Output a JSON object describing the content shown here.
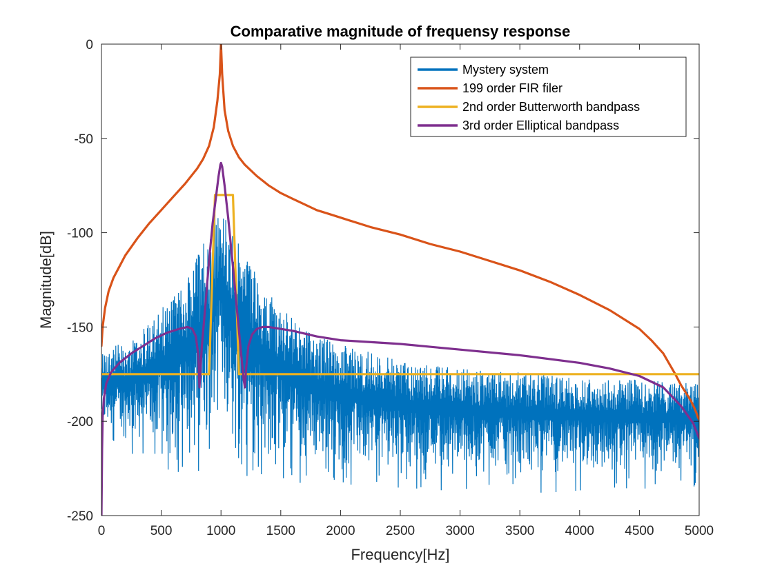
{
  "chart_data": {
    "type": "line",
    "title": "Comparative magnitude of frequensy response",
    "xlabel": "Frequency[Hz]",
    "ylabel": "Magnitude[dB]",
    "xlim": [
      0,
      5000
    ],
    "ylim": [
      -250,
      0
    ],
    "xticks": [
      0,
      500,
      1000,
      1500,
      2000,
      2500,
      3000,
      3500,
      4000,
      4500,
      5000
    ],
    "yticks": [
      -250,
      -200,
      -150,
      -100,
      -50,
      0
    ],
    "xtick_labels": [
      "0",
      "500",
      "1000",
      "1500",
      "2000",
      "2500",
      "3000",
      "3500",
      "4000",
      "4500",
      "5000"
    ],
    "ytick_labels": [
      "-250",
      "-200",
      "-150",
      "-100",
      "-50",
      "0"
    ],
    "grid": false,
    "legend_position": "top-right",
    "series": [
      {
        "name": "Mystery system",
        "color": "#0072BD",
        "style": "noise-envelope",
        "x": [
          0,
          200,
          400,
          600,
          700,
          800,
          900,
          950,
          1000,
          1050,
          1100,
          1200,
          1400,
          1600,
          1800,
          2000,
          2500,
          3000,
          3500,
          4000,
          4500,
          5000
        ],
        "upper": [
          -162,
          -158,
          -148,
          -133,
          -125,
          -113,
          -98,
          -90,
          -85,
          -91,
          -99,
          -113,
          -132,
          -145,
          -154,
          -159,
          -168,
          -172,
          -174,
          -176,
          -178,
          -180
        ],
        "lower": [
          -205,
          -210,
          -214,
          -217,
          -219,
          -220,
          -222,
          -205,
          -190,
          -205,
          -222,
          -220,
          -222,
          -223,
          -224,
          -225,
          -226,
          -227,
          -228,
          -228,
          -228,
          -226
        ]
      },
      {
        "name": "199 order FIR filer",
        "color": "#D95319",
        "x": [
          0,
          10,
          30,
          60,
          100,
          200,
          300,
          400,
          500,
          600,
          700,
          800,
          850,
          900,
          940,
          970,
          990,
          1000,
          1010,
          1030,
          1060,
          1100,
          1150,
          1200,
          1300,
          1400,
          1500,
          1600,
          1700,
          1800,
          1900,
          2000,
          2250,
          2500,
          2750,
          3000,
          3250,
          3500,
          3750,
          4000,
          4250,
          4500,
          4600,
          4700,
          4800,
          4850,
          4900,
          4930,
          4960,
          4980,
          4990,
          5000
        ],
        "y": [
          -160,
          -150,
          -140,
          -131,
          -124,
          -112,
          -103,
          -95,
          -88,
          -81,
          -74,
          -66,
          -61,
          -54,
          -44,
          -30,
          -16,
          0,
          -16,
          -35,
          -46,
          -54,
          -60,
          -64,
          -70,
          -75,
          -79,
          -82,
          -85,
          -88,
          -90,
          -92,
          -97,
          -101,
          -106,
          -110,
          -115,
          -120,
          -126,
          -133,
          -141,
          -151,
          -157,
          -164,
          -175,
          -181,
          -186,
          -189,
          -193,
          -196,
          -198,
          -199
        ]
      },
      {
        "name": "2nd order Butterworth bandpass",
        "color": "#EDB120",
        "x": [
          0,
          900,
          950,
          1000,
          1050,
          1100,
          1150,
          5000
        ],
        "y": [
          -175,
          -175,
          -80,
          -80,
          -80,
          -80,
          -175,
          -175
        ]
      },
      {
        "name": "3rd order Elliptical bandpass",
        "color": "#7E2F8E",
        "x": [
          0,
          5,
          10,
          20,
          40,
          80,
          150,
          250,
          350,
          450,
          550,
          650,
          720,
          760,
          790,
          810,
          820,
          840,
          870,
          900,
          930,
          960,
          980,
          995,
          1000,
          1010,
          1030,
          1060,
          1100,
          1140,
          1170,
          1190,
          1200,
          1210,
          1230,
          1260,
          1300,
          1350,
          1400,
          1600,
          1800,
          2000,
          2500,
          3000,
          3500,
          4000,
          4250,
          4500,
          4700,
          4850,
          4950,
          5000
        ],
        "y": [
          -250,
          -215,
          -198,
          -188,
          -180,
          -174,
          -169,
          -164,
          -160,
          -156,
          -153,
          -151,
          -150,
          -151,
          -155,
          -165,
          -182,
          -160,
          -138,
          -115,
          -95,
          -80,
          -70,
          -64,
          -63,
          -65,
          -75,
          -92,
          -118,
          -145,
          -165,
          -178,
          -182,
          -172,
          -160,
          -154,
          -151,
          -150,
          -150,
          -152,
          -155,
          -157,
          -159,
          -162,
          -165,
          -169,
          -172,
          -176,
          -182,
          -192,
          -201,
          -209
        ]
      }
    ]
  }
}
